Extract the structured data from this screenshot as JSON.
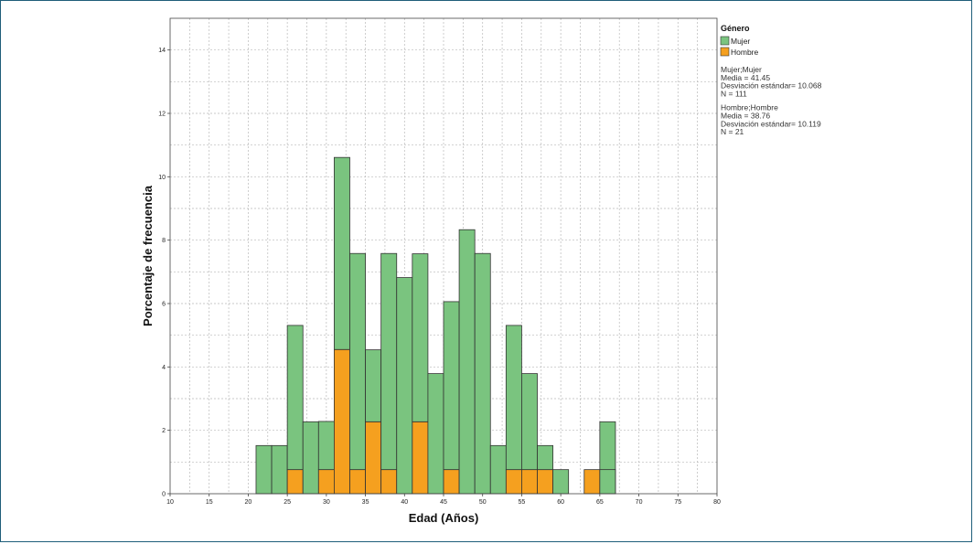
{
  "chart_data": {
    "type": "bar",
    "stacked": true,
    "xlabel": "Edad (Años)",
    "ylabel": "Porcentaje de frecuencia",
    "xlim": [
      10,
      80
    ],
    "ylim": [
      0,
      15
    ],
    "x_ticks": [
      10,
      15,
      20,
      25,
      30,
      35,
      40,
      45,
      50,
      55,
      60,
      65,
      70,
      75,
      80
    ],
    "y_ticks": [
      0,
      2,
      4,
      6,
      8,
      10,
      12,
      14
    ],
    "bin_width": 2,
    "bins": [
      21,
      23,
      25,
      27,
      29,
      31,
      33,
      35,
      37,
      39,
      41,
      43,
      45,
      47,
      49,
      51,
      53,
      55,
      57,
      59,
      61,
      63,
      65
    ],
    "grid": true,
    "legend": {
      "title": "Género",
      "position": "right",
      "entries": [
        {
          "label": "Mujer",
          "color": "#7ac47f"
        },
        {
          "label": "Hombre",
          "color": "#f5a01f"
        }
      ]
    },
    "series": [
      {
        "name": "Hombre",
        "color": "#f5a01f",
        "values": [
          0,
          0,
          0.76,
          0,
          0.76,
          4.55,
          0.76,
          2.27,
          0.76,
          0,
          2.27,
          0,
          0.76,
          0,
          0,
          0,
          0.76,
          0.76,
          0.76,
          0,
          0,
          0.76,
          0
        ]
      },
      {
        "name": "Mujer",
        "color": "#7ac47f",
        "values": [
          1.52,
          1.52,
          4.55,
          2.27,
          1.52,
          6.06,
          6.82,
          2.27,
          6.82,
          6.82,
          5.3,
          3.79,
          5.3,
          8.33,
          7.58,
          1.52,
          4.55,
          3.03,
          0.76,
          0.76,
          0,
          0,
          2.27
        ]
      }
    ],
    "extra_bars": [
      {
        "x": 65,
        "value": 0.76,
        "series": "Mujer"
      }
    ],
    "stats": [
      [
        "Mujer;Mujer",
        "Media = 41.45",
        "Desviación estándar= 10.068",
        "N = 111"
      ],
      [
        "Hombre;Hombre",
        "Media = 38.76",
        "Desviación estándar= 10.119",
        "N = 21"
      ]
    ]
  }
}
